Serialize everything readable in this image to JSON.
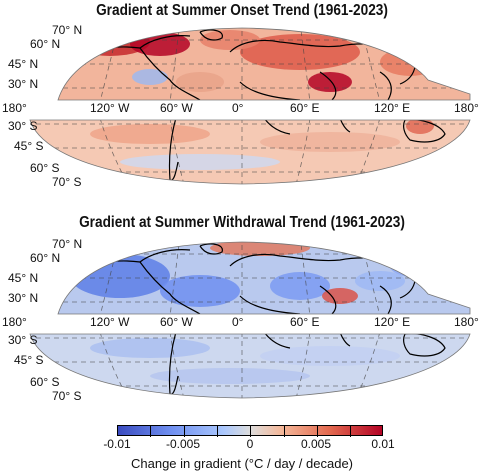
{
  "maps": [
    {
      "title": "Gradient at Summer Onset Trend (1961-2023)",
      "tone": "warm"
    },
    {
      "title": "Gradient at Summer Withdrawal Trend (1961-2023)",
      "tone": "cool"
    }
  ],
  "lat_labels_north": [
    "70° N",
    "60° N",
    "45° N",
    "30° N"
  ],
  "lat_labels_south": [
    "30° S",
    "45° S",
    "60° S",
    "70° S"
  ],
  "lon_labels": [
    "180°",
    "120° W",
    "60° W",
    "0°",
    "60° E",
    "120° E",
    "180°"
  ],
  "colorbar": {
    "min": -0.01,
    "max": 0.01,
    "tick_labels": [
      "-0.01",
      "-0.005",
      "0",
      "0.005",
      "0.01"
    ],
    "label": "Change in gradient (°C / day / decade)",
    "colors": [
      "#3b4cc0",
      "#dddddd",
      "#b40426"
    ]
  }
}
